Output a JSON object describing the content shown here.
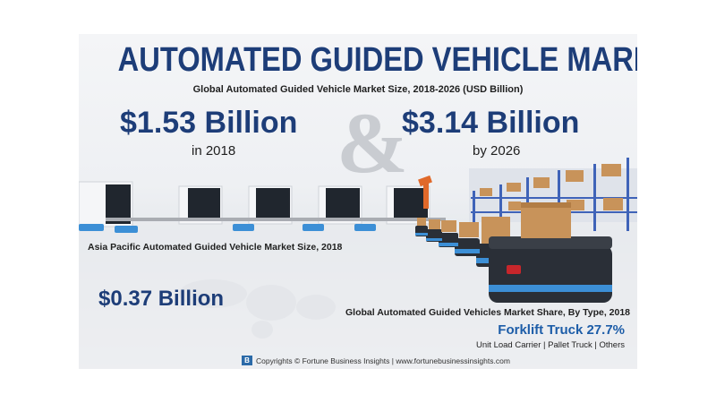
{
  "title": "AUTOMATED GUIDED VEHICLE MARKET",
  "subtitle": "Global Automated Guided Vehicle Market Size, 2018-2026 (USD Billion)",
  "market_2018": {
    "value": "$1.53 Billion",
    "label": "in 2018"
  },
  "connector": "&",
  "market_2026": {
    "value": "$3.14 Billion",
    "label": "by 2026"
  },
  "asia_pacific": {
    "label": "Asia Pacific Automated Guided Vehicle Market Size, 2018",
    "value": "$0.37 Billion"
  },
  "share": {
    "label": "Global Automated Guided Vehicles Market Share, By Type, 2018",
    "leader": "Forklift Truck 27.7%",
    "others": "Unit Load Carrier  |  Pallet Truck  |  Others"
  },
  "footer": {
    "logo_letter": "B",
    "text": "Copyrights © Fortune Business Insights | www.fortunebusinessinsights.com"
  },
  "colors": {
    "brand_navy": "#1d3d78",
    "accent_blue": "#1d5da8",
    "agv_blue": "#3c8fd6"
  }
}
